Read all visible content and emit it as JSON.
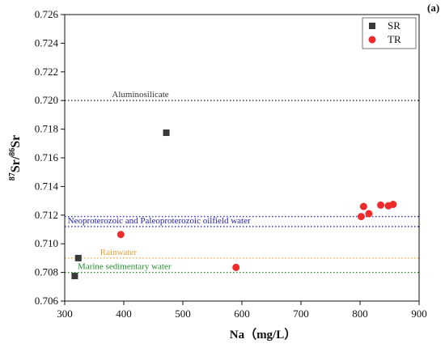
{
  "panel_label": "(a)",
  "chart_data": {
    "type": "scatter",
    "xlabel": "Na（mg/L）",
    "ylabel": {
      "pre": "87",
      "a": "Sr/",
      "sup": "86",
      "b": "Sr"
    },
    "xlim": [
      300,
      900
    ],
    "ylim": [
      0.706,
      0.726
    ],
    "xticks": [
      "300",
      "400",
      "500",
      "600",
      "700",
      "800",
      "900"
    ],
    "yticks": [
      "0.706",
      "0.708",
      "0.710",
      "0.712",
      "0.714",
      "0.716",
      "0.718",
      "0.720",
      "0.722",
      "0.724",
      "0.726"
    ],
    "grid": false,
    "legend": "top-right",
    "series": [
      {
        "name": "SR",
        "marker": "square",
        "color": "#3a3a3a",
        "points": [
          [
            317,
            0.70775
          ],
          [
            323,
            0.709
          ],
          [
            472,
            0.71775
          ]
        ]
      },
      {
        "name": "TR",
        "marker": "circle",
        "color": "#ee2b2b",
        "points": [
          [
            395,
            0.71065
          ],
          [
            590,
            0.70835
          ],
          [
            802,
            0.7119
          ],
          [
            806,
            0.7126
          ],
          [
            815,
            0.7121
          ],
          [
            835,
            0.7127
          ],
          [
            848,
            0.71265
          ],
          [
            856,
            0.71275
          ]
        ]
      }
    ],
    "reference_lines": [
      {
        "y": 0.72,
        "label": "Aluminosilicate",
        "color": "#333333",
        "label_x": 380
      },
      {
        "y": 0.7119,
        "label": "",
        "color": "#3030b0"
      },
      {
        "y": 0.7112,
        "label": "Neoproterozoic and Paleoproterozoic oilfield water",
        "color": "#2222aa",
        "label_x": 305
      },
      {
        "y": 0.709,
        "label": "Rainwater",
        "color": "#f0a030",
        "label_x": 360
      },
      {
        "y": 0.708,
        "label": "Marine sedimentary water",
        "color": "#20902a",
        "label_x": 322
      }
    ]
  }
}
